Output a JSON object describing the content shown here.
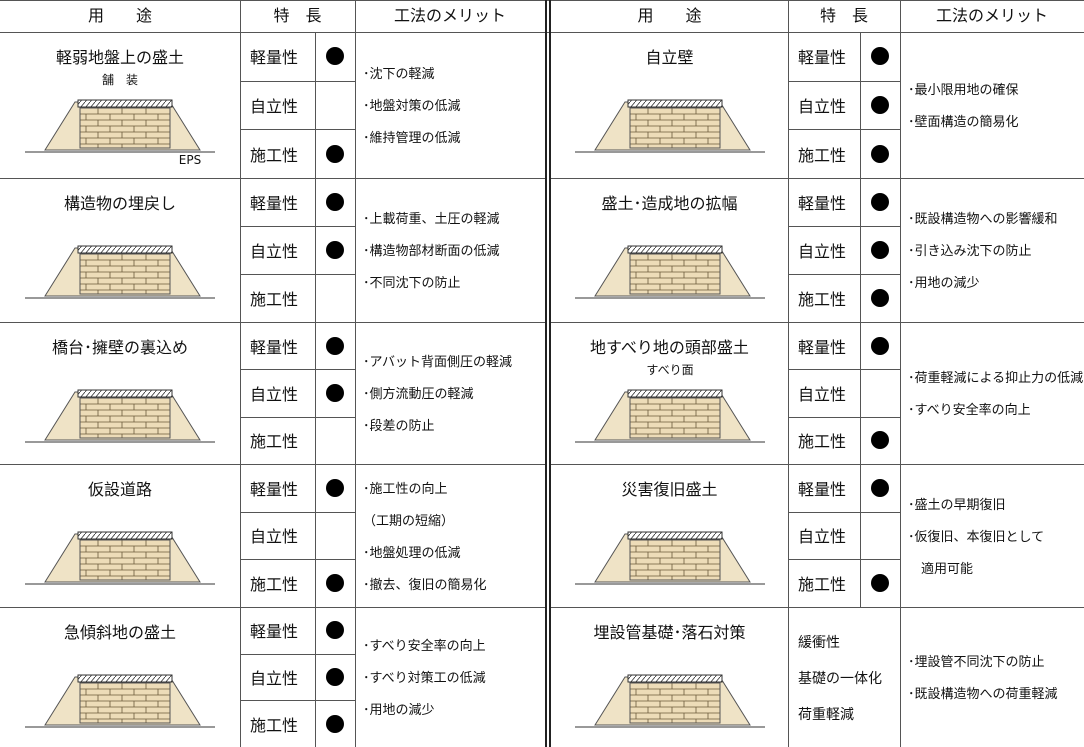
{
  "header": [
    "用　　途",
    "特　長",
    "工法のメリット"
  ],
  "halves": [
    {
      "rows": [
        {
          "use": "軽弱地盤上の盛土",
          "labels": [
            "舗　装",
            "EPS"
          ],
          "features": [
            {
              "name": "軽量性",
              "mark": true
            },
            {
              "name": "自立性",
              "mark": false
            },
            {
              "name": "施工性",
              "mark": true
            }
          ],
          "merits": [
            "･沈下の軽減",
            "･地盤対策の低減",
            "･維持管理の低減"
          ]
        },
        {
          "use": "構造物の埋戻し",
          "labels": [],
          "features": [
            {
              "name": "軽量性",
              "mark": true
            },
            {
              "name": "自立性",
              "mark": true
            },
            {
              "name": "施工性",
              "mark": false
            }
          ],
          "merits": [
            "･上載荷重、土圧の軽減",
            "･構造物部材断面の低減",
            "･不同沈下の防止"
          ]
        },
        {
          "use": "橋台･擁壁の裏込め",
          "labels": [],
          "features": [
            {
              "name": "軽量性",
              "mark": true
            },
            {
              "name": "自立性",
              "mark": true
            },
            {
              "name": "施工性",
              "mark": false
            }
          ],
          "merits": [
            "･アバット背面側圧の軽減",
            "･側方流動圧の軽減",
            "･段差の防止"
          ]
        },
        {
          "use": "仮設道路",
          "labels": [],
          "features": [
            {
              "name": "軽量性",
              "mark": true
            },
            {
              "name": "自立性",
              "mark": false
            },
            {
              "name": "施工性",
              "mark": true
            }
          ],
          "merits": [
            "･施工性の向上",
            "（工期の短縮）",
            "･地盤処理の低減",
            "･撤去、復旧の簡易化"
          ]
        },
        {
          "use": "急傾斜地の盛土",
          "labels": [],
          "features": [
            {
              "name": "軽量性",
              "mark": true
            },
            {
              "name": "自立性",
              "mark": true
            },
            {
              "name": "施工性",
              "mark": true
            }
          ],
          "merits": [
            "･すべり安全率の向上",
            "･すべり対策工の低減",
            "･用地の減少"
          ]
        }
      ]
    },
    {
      "rows": [
        {
          "use": "自立壁",
          "labels": [],
          "features": [
            {
              "name": "軽量性",
              "mark": true
            },
            {
              "name": "自立性",
              "mark": true
            },
            {
              "name": "施工性",
              "mark": true
            }
          ],
          "merits": [
            "･最小限用地の確保",
            "･壁面構造の簡易化"
          ]
        },
        {
          "use": "盛土･造成地の拡幅",
          "labels": [],
          "features": [
            {
              "name": "軽量性",
              "mark": true
            },
            {
              "name": "自立性",
              "mark": true
            },
            {
              "name": "施工性",
              "mark": true
            }
          ],
          "merits": [
            "･既設構造物への影響緩和",
            "･引き込み沈下の防止",
            "･用地の減少"
          ]
        },
        {
          "use": "地すべり地の頭部盛土",
          "labels": [
            "すべり面"
          ],
          "features": [
            {
              "name": "軽量性",
              "mark": true
            },
            {
              "name": "自立性",
              "mark": false
            },
            {
              "name": "施工性",
              "mark": true
            }
          ],
          "merits": [
            "･荷重軽減による抑止力の低減",
            "･すべり安全率の向上"
          ]
        },
        {
          "use": "災害復旧盛土",
          "labels": [],
          "features": [
            {
              "name": "軽量性",
              "mark": true
            },
            {
              "name": "自立性",
              "mark": false
            },
            {
              "name": "施工性",
              "mark": true
            }
          ],
          "merits": [
            "･盛土の早期復旧",
            "･仮復旧、本復旧として",
            "　適用可能"
          ]
        },
        {
          "use": "埋設管基礎･落石対策",
          "labels": [],
          "features": [
            "緩衝性",
            "基礎の一体化",
            "荷重軽減"
          ],
          "merits": [
            "･埋設管不同沈下の防止",
            "･既設構造物への荷重軽減"
          ]
        }
      ]
    }
  ]
}
